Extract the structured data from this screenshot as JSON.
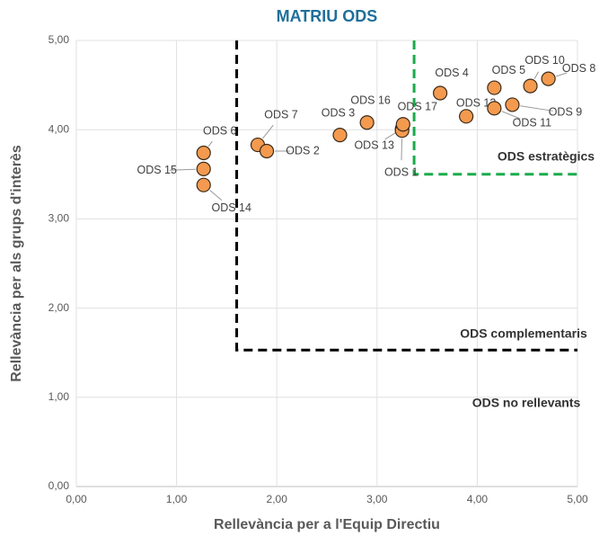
{
  "chart_data": {
    "type": "scatter",
    "title": "MATRIU ODS",
    "x_label": "Rellevància per a l'Equip Directiu",
    "y_label": "Rellevància per als grups d'interès",
    "xlim": [
      0,
      5
    ],
    "ylim": [
      0,
      5
    ],
    "xticks": [
      {
        "value": 0,
        "label": "0,00"
      },
      {
        "value": 1,
        "label": "1,00"
      },
      {
        "value": 2,
        "label": "2,00"
      },
      {
        "value": 3,
        "label": "3,00"
      },
      {
        "value": 4,
        "label": "4,00"
      },
      {
        "value": 5,
        "label": "5,00"
      }
    ],
    "yticks": [
      {
        "value": 0,
        "label": "0,00"
      },
      {
        "value": 1,
        "label": "1,00"
      },
      {
        "value": 2,
        "label": "2,00"
      },
      {
        "value": 3,
        "label": "3,00"
      },
      {
        "value": 4,
        "label": "4,00"
      },
      {
        "value": 5,
        "label": "5,00"
      }
    ],
    "grid": true,
    "color": "#f39a4f",
    "labels": [
      "ODS 6",
      "ODS 15",
      "ODS 14",
      "ODS 7",
      "ODS 2",
      "ODS 3",
      "ODS 16",
      "ODS 13",
      "ODS 1",
      "ODS 17",
      "ODS 4",
      "ODS 12",
      "ODS 5",
      "ODS 11",
      "ODS 9",
      "ODS 10",
      "ODS 8"
    ],
    "x": [
      1.27,
      1.27,
      1.27,
      1.81,
      1.9,
      2.63,
      2.9,
      3.25,
      3.25,
      3.26,
      3.63,
      3.89,
      4.17,
      4.17,
      4.35,
      4.53,
      4.71
    ],
    "values": [
      3.74,
      3.56,
      3.38,
      3.83,
      3.76,
      3.94,
      4.08,
      4.01,
      3.99,
      4.06,
      4.41,
      4.15,
      4.47,
      4.24,
      4.28,
      4.49,
      4.57
    ],
    "regions": [
      {
        "label": "ODS estratègics",
        "x": 3.37,
        "y": 3.5,
        "color": "#1aab4b"
      },
      {
        "label": "ODS complementaris",
        "x": 1.6,
        "y": 1.53,
        "color": "#000000"
      }
    ],
    "annotations": [
      "ODS no rellevants"
    ]
  }
}
